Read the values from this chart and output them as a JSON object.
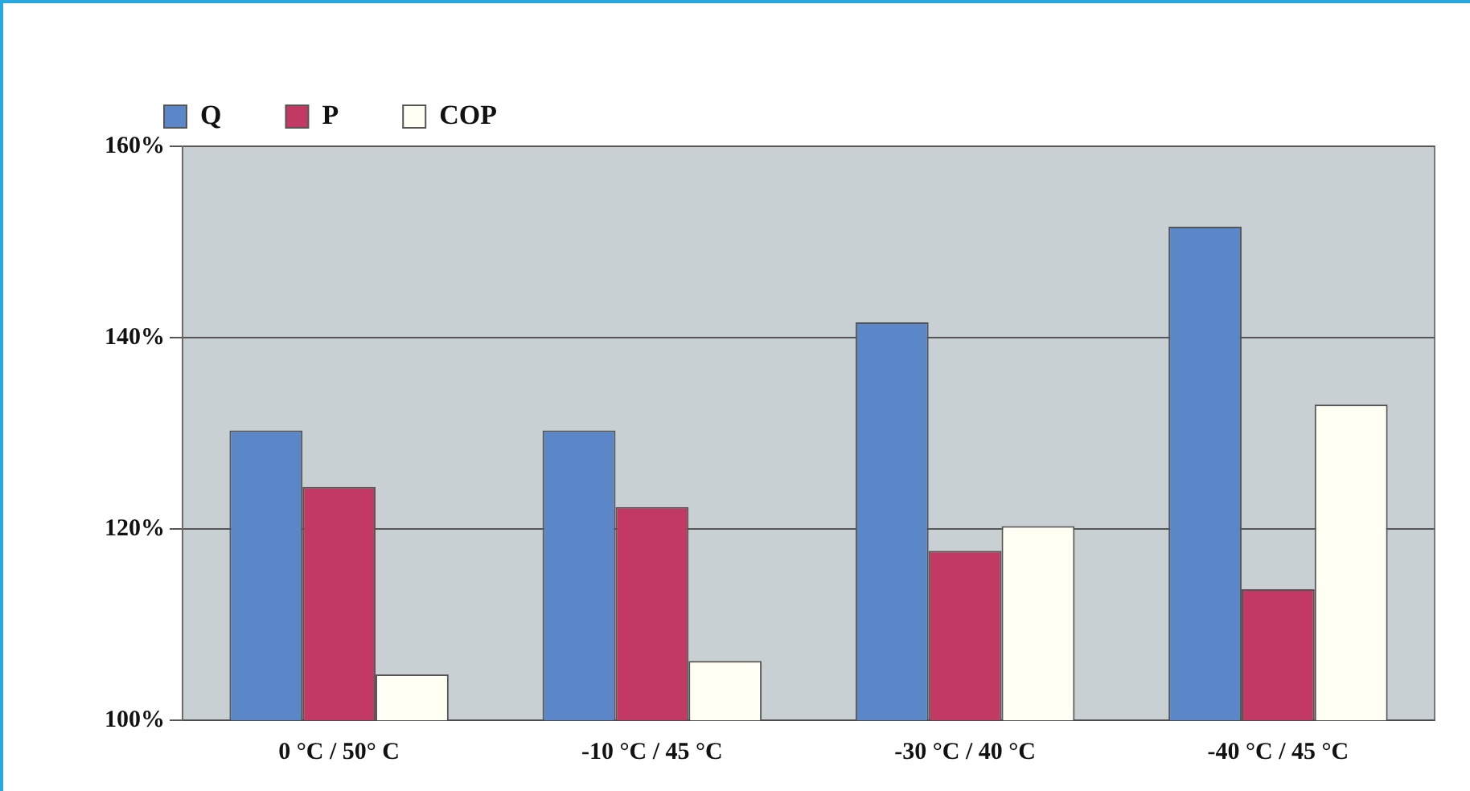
{
  "chart_data": {
    "type": "bar",
    "categories": [
      "0 °C / 50° C",
      "-10 °C / 45 °C",
      "-30 °C / 40 °C",
      "-40 °C / 45 °C"
    ],
    "series": [
      {
        "name": "Q",
        "color": "#5b86c8",
        "values": [
          130.3,
          130.3,
          141.6,
          151.6
        ]
      },
      {
        "name": "P",
        "color": "#c23a64",
        "values": [
          124.4,
          122.3,
          117.7,
          113.7
        ]
      },
      {
        "name": "COP",
        "color": "#fffff4",
        "values": [
          104.8,
          106.2,
          120.3,
          133.0
        ]
      }
    ],
    "ylim": [
      100,
      160
    ],
    "yticks": [
      {
        "value": 100,
        "label": "100%"
      },
      {
        "value": 120,
        "label": "120%"
      },
      {
        "value": 140,
        "label": "140%"
      },
      {
        "value": 160,
        "label": "160%"
      }
    ],
    "grid": "y",
    "legend": "top left"
  }
}
